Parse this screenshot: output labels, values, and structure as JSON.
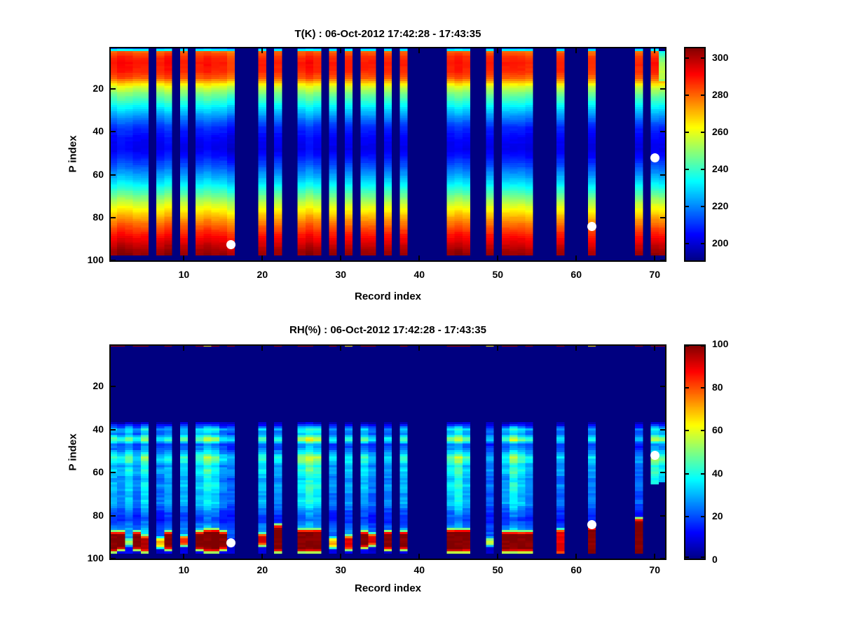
{
  "figure": {
    "background": "#ffffff",
    "marker_color": "#ffffff"
  },
  "chart_data": [
    {
      "type": "heatmap",
      "title": "T(K) : 06-Oct-2012 17:42:28 - 17:43:35",
      "xlabel": "Record index",
      "ylabel": "P index",
      "x_ticks": [
        10,
        20,
        30,
        40,
        50,
        60,
        70
      ],
      "y_ticks": [
        20,
        40,
        60,
        80,
        100
      ],
      "x_range": [
        0.5,
        71.5
      ],
      "y_range": [
        0.5,
        100.5
      ],
      "y_axis_reversed": true,
      "n_records": 71,
      "n_levels": 100,
      "colormap": "jet",
      "color_range": [
        190,
        306
      ],
      "colorbar_ticks": [
        200,
        220,
        240,
        260,
        280,
        300
      ],
      "gap_value": 190,
      "no_data_below_p": 97,
      "profile_p": [
        1,
        2,
        3,
        5,
        8,
        12,
        15,
        17,
        19,
        22,
        26,
        30,
        34,
        38,
        43,
        48,
        52,
        56,
        60,
        64,
        68,
        72,
        76,
        80,
        84,
        88,
        92,
        95,
        97,
        98,
        100
      ],
      "profile_t": [
        214,
        232,
        280,
        286,
        289,
        287,
        281,
        270,
        258,
        248,
        238,
        228,
        218,
        209,
        204,
        202,
        207,
        214,
        222,
        231,
        241,
        252,
        262,
        272,
        281,
        289,
        296,
        301,
        303,
        190,
        190
      ],
      "column_offsets": {
        "2": 3,
        "3": 2,
        "8": 3,
        "13": 2,
        "16": -4,
        "26": 3,
        "45": 2,
        "54": -2,
        "62": -2,
        "68": -1,
        "70": 1
      },
      "cold_top_record": {
        "record": 71,
        "p_max": 16
      },
      "noise_amp": 1.8
    },
    {
      "type": "heatmap",
      "title": "RH(%) : 06-Oct-2012 17:42:28 - 17:43:35",
      "xlabel": "Record index",
      "ylabel": "P index",
      "x_ticks": [
        10,
        20,
        30,
        40,
        50,
        60,
        70
      ],
      "y_ticks": [
        20,
        40,
        60,
        80,
        100
      ],
      "x_range": [
        0.5,
        71.5
      ],
      "y_range": [
        0.5,
        100.5
      ],
      "y_axis_reversed": true,
      "n_records": 71,
      "n_levels": 100,
      "colormap": "jet",
      "color_range": [
        0,
        100
      ],
      "colorbar_ticks": [
        0,
        20,
        40,
        60,
        80,
        100
      ],
      "gap_value": 0,
      "dry_above_p": 37,
      "no_data_below_p": 98,
      "profile_p": [
        2,
        36,
        38,
        40,
        42,
        44,
        45,
        47,
        49,
        51,
        53,
        55,
        57,
        59,
        61,
        63,
        66,
        70,
        74,
        78,
        82,
        85,
        86,
        100
      ],
      "profile_rh": [
        0,
        0,
        14,
        30,
        24,
        40,
        42,
        20,
        22,
        30,
        40,
        36,
        28,
        33,
        30,
        26,
        30,
        26,
        28,
        20,
        16,
        22,
        25,
        25
      ],
      "column_multiplier": {
        "1": 1.1,
        "2": 0.95,
        "3": 1.2,
        "4": 0.9,
        "5": 1.3,
        "7": 0.85,
        "8": 1.0,
        "10": 1.1,
        "12": 1.15,
        "13": 1.4,
        "14": 1.25,
        "15": 0.9,
        "16": 0.8,
        "20": 1.1,
        "22": 0.95,
        "25": 1.3,
        "26": 1.5,
        "27": 1.35,
        "29": 0.9,
        "31": 1.0,
        "33": 1.1,
        "34": 0.85,
        "36": 0.9,
        "38": 1.05,
        "44": 1.2,
        "45": 1.45,
        "46": 1.1,
        "49": 0.8,
        "51": 1.0,
        "52": 1.4,
        "53": 1.15,
        "54": 0.95,
        "58": 0.85,
        "62": 0.9,
        "68": 0.75,
        "70": 1.35,
        "71": 1.2
      },
      "bottom_red_value": {
        "1": 100,
        "2": 100,
        "3": 55,
        "4": 100,
        "5": 95,
        "7": 70,
        "8": 100,
        "10": 85,
        "12": 100,
        "13": 100,
        "14": 100,
        "15": 100,
        "16": 30,
        "20": 90,
        "22": 100,
        "25": 100,
        "26": 100,
        "27": 100,
        "29": 70,
        "31": 90,
        "33": 100,
        "34": 90,
        "36": 100,
        "38": 100,
        "44": 100,
        "45": 100,
        "46": 100,
        "49": 60,
        "51": 100,
        "52": 100,
        "53": 100,
        "54": 100,
        "58": 90,
        "62": 100,
        "68": 100,
        "70": 0,
        "71": 0
      },
      "bottom_red_range_default": [
        87,
        96
      ],
      "bottom_red_range": {
        "62": [
          85,
          99
        ],
        "68": [
          81,
          99
        ],
        "22": [
          84,
          97
        ],
        "13": [
          86,
          97
        ],
        "14": [
          86,
          97
        ],
        "25": [
          86,
          97
        ],
        "26": [
          86,
          97
        ],
        "27": [
          86,
          97
        ],
        "44": [
          86,
          97
        ],
        "45": [
          86,
          97
        ],
        "46": [
          86,
          97
        ],
        "1": [
          87,
          97
        ],
        "5": [
          89,
          97
        ],
        "20": [
          88,
          94
        ],
        "29": [
          90,
          95
        ],
        "31": [
          89,
          96
        ],
        "33": [
          87,
          95
        ],
        "34": [
          88,
          94
        ],
        "49": [
          90,
          94
        ],
        "16": [
          91,
          94
        ],
        "10": [
          89,
          94
        ],
        "3": [
          90,
          94
        ],
        "7": [
          90,
          95
        ],
        "58": [
          86,
          98
        ],
        "51": [
          87,
          97
        ],
        "52": [
          87,
          97
        ],
        "53": [
          87,
          97
        ],
        "54": [
          87,
          97
        ]
      },
      "top_row_value": {
        "1": 97,
        "2": 97,
        "4": 97,
        "5": 97,
        "8": 97,
        "12": 97,
        "13": 65,
        "14": 97,
        "16": 97,
        "22": 97,
        "25": 97,
        "26": 97,
        "29": 97,
        "31": 65,
        "33": 97,
        "34": 97,
        "38": 97,
        "44": 97,
        "45": 97,
        "46": 97,
        "49": 65,
        "51": 97,
        "52": 97,
        "54": 97,
        "58": 97,
        "62": 65,
        "68": 97,
        "70": 97,
        "71": 97
      },
      "short_columns_max_p": {
        "70": 65,
        "71": 64
      },
      "noise_amp": 6
    }
  ],
  "shared": {
    "gap_records": [
      6,
      9,
      11,
      17,
      18,
      19,
      21,
      23,
      24,
      28,
      30,
      32,
      35,
      37,
      39,
      40,
      41,
      42,
      43,
      47,
      48,
      50,
      55,
      56,
      57,
      59,
      60,
      61,
      63,
      64,
      65,
      66,
      67,
      69
    ],
    "markers": [
      {
        "record": 16,
        "p": 92.5
      },
      {
        "record": 62,
        "p": 84
      },
      {
        "record": 70,
        "p": 52
      }
    ]
  }
}
